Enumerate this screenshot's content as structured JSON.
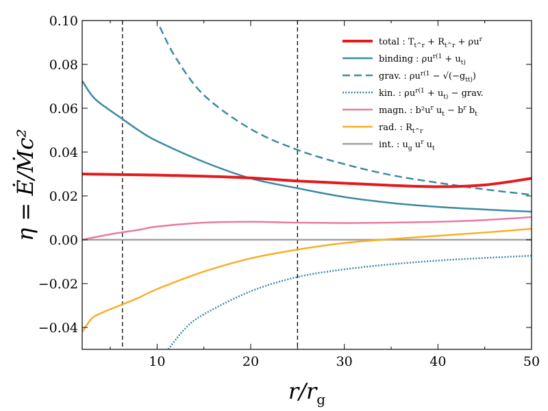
{
  "chart_data": {
    "type": "line",
    "xlabel": "r/r_g",
    "ylabel": "η = Ė/Ṁc²",
    "xlim": [
      2.0,
      50
    ],
    "ylim": [
      -0.05,
      0.1
    ],
    "xticks": [
      10,
      20,
      30,
      40,
      50
    ],
    "xtick_labels": [
      "10",
      "20",
      "30",
      "40",
      "50"
    ],
    "yticks": [
      -0.04,
      -0.02,
      0.0,
      0.02,
      0.04,
      0.06,
      0.08,
      0.1
    ],
    "ytick_labels": [
      "−0.04",
      "−0.02",
      "0.00",
      "0.02",
      "0.04",
      "0.06",
      "0.08",
      "0.10"
    ],
    "vertical_lines": [
      6.3,
      25.0
    ],
    "legend_location": "top-right",
    "series": [
      {
        "name": "total : T_t^r + R_t^r + ρu^r",
        "color": "#e31a1c",
        "style": "solid",
        "width": "thick",
        "x": [
          2,
          5,
          10,
          15,
          20,
          25,
          30,
          35,
          40,
          45,
          50
        ],
        "y": [
          0.03,
          0.0298,
          0.0295,
          0.029,
          0.0282,
          0.0268,
          0.0258,
          0.0248,
          0.0242,
          0.025,
          0.028
        ]
      },
      {
        "name": "binding : ρu^r(1 + u_t)",
        "color": "#3a89a3",
        "style": "solid",
        "width": "normal",
        "x": [
          2,
          3,
          4,
          6,
          8,
          10,
          15,
          20,
          25,
          30,
          35,
          40,
          45,
          50
        ],
        "y": [
          0.0725,
          0.066,
          0.062,
          0.056,
          0.05,
          0.045,
          0.0355,
          0.028,
          0.0235,
          0.0195,
          0.0168,
          0.015,
          0.0138,
          0.0128
        ]
      },
      {
        "name": "grav. : ρu^r(1 − √(−g_tt))",
        "color": "#3a89a3",
        "style": "dashed",
        "width": "normal",
        "x": [
          10.3,
          12,
          15,
          20,
          25,
          30,
          35,
          40,
          45,
          50
        ],
        "y": [
          0.097,
          0.083,
          0.066,
          0.0505,
          0.041,
          0.0345,
          0.0295,
          0.026,
          0.023,
          0.0205
        ]
      },
      {
        "name": "kin. : ρu^r(1 + u_t) − grav.",
        "color": "#3a89a3",
        "style": "dotted",
        "width": "normal",
        "x": [
          11.2,
          13,
          15,
          20,
          25,
          30,
          35,
          40,
          45,
          50
        ],
        "y": [
          -0.05,
          -0.0405,
          -0.034,
          -0.0235,
          -0.017,
          -0.0135,
          -0.0112,
          -0.0095,
          -0.0083,
          -0.0073
        ]
      },
      {
        "name": "magn. : b²u^r u_t − b^r b_t",
        "color": "#e87aa0",
        "style": "solid",
        "width": "normal",
        "x": [
          2,
          5,
          8,
          10,
          15,
          20,
          25,
          30,
          35,
          40,
          45,
          50
        ],
        "y": [
          0.0,
          0.0025,
          0.0045,
          0.006,
          0.0078,
          0.0082,
          0.0078,
          0.0076,
          0.0078,
          0.0082,
          0.009,
          0.0103
        ]
      },
      {
        "name": "rad. : R_t^r",
        "color": "#f9ae24",
        "style": "solid",
        "width": "normal",
        "x": [
          2,
          3,
          4,
          6,
          8,
          10,
          15,
          20,
          25,
          30,
          35,
          40,
          45,
          50
        ],
        "y": [
          -0.042,
          -0.036,
          -0.0335,
          -0.03,
          -0.0265,
          -0.0225,
          -0.0145,
          -0.0085,
          -0.0045,
          -0.0015,
          0.0003,
          0.0018,
          0.0033,
          0.005
        ]
      },
      {
        "name": "int. : u_g u^r u_t",
        "color": "#a0a0a0",
        "style": "solid",
        "width": "normal",
        "x": [
          2,
          50
        ],
        "y": [
          0.0,
          0.0
        ]
      }
    ],
    "legend": [
      {
        "prefix": "total",
        "formula": ": T",
        "sup": "r",
        "sub": "t",
        "rest": " + R",
        "sup2": "r",
        "sub2": "t",
        "tail": " + ρu",
        "sup3": "r"
      },
      {
        "text": "binding : ρu^r(1 + u_t)"
      },
      {
        "text": "grav. : ρu^r(1 − √−g_tt)"
      },
      {
        "text": "kin. : ρu^r(1 + u_t) − grav."
      },
      {
        "text": "magn. : b²u^r u_t − b^r b_t"
      },
      {
        "text": "rad. : R_t^r"
      },
      {
        "text": "int. : u_g u^r u_t"
      }
    ]
  }
}
